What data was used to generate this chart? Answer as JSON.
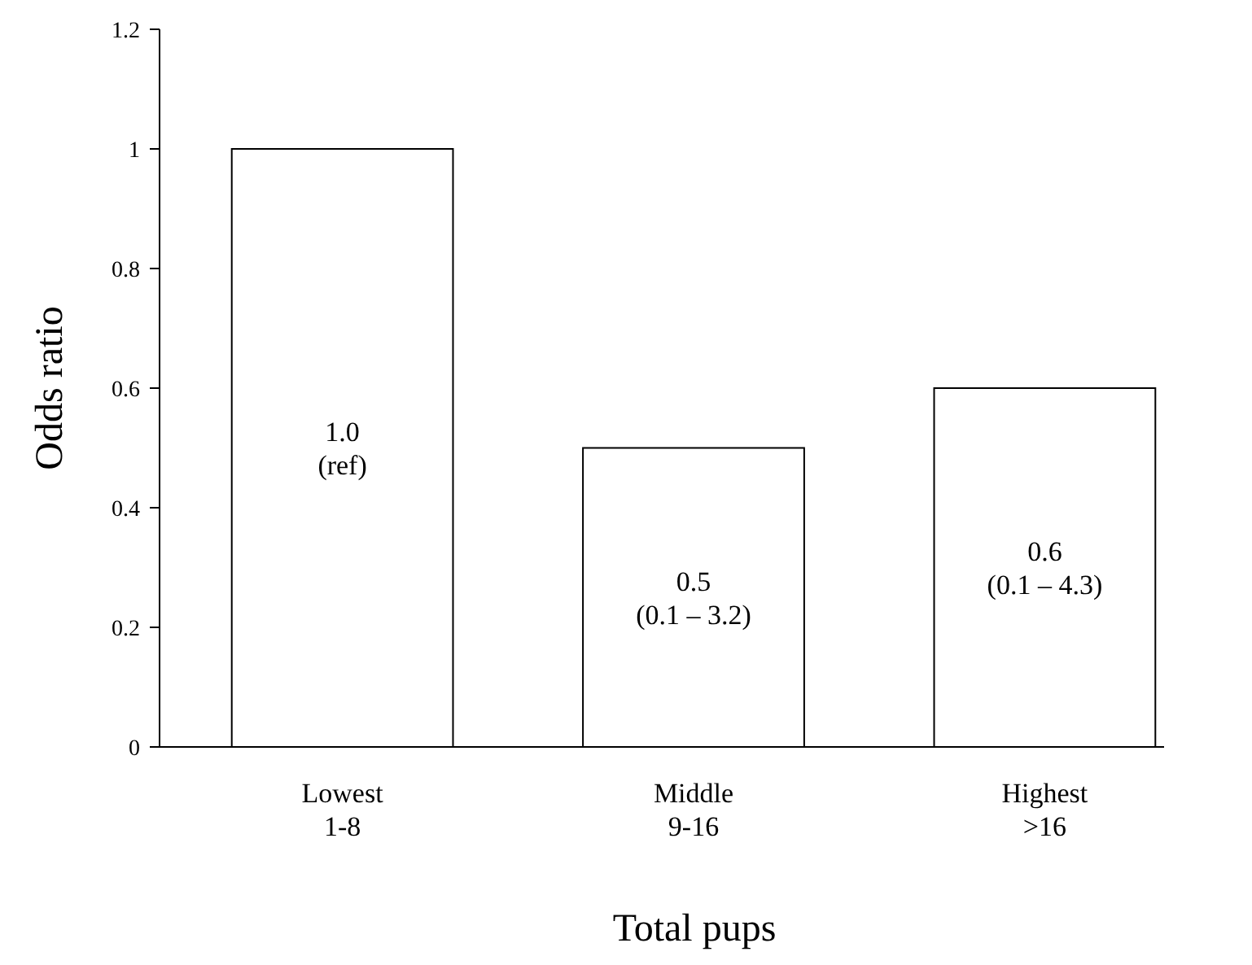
{
  "chart_data": {
    "type": "bar",
    "xlabel": "Total pups",
    "ylabel": "Odds ratio",
    "categories": [
      "Lowest\n1-8",
      "Middle\n9-16",
      "Highest\n>16"
    ],
    "values": [
      1.0,
      0.5,
      0.6
    ],
    "value_labels": [
      "1.0\n(ref)",
      "0.5\n(0.1 – 3.2)",
      "0.6\n(0.1 – 4.3)"
    ],
    "color": "#ffffff",
    "ylim": [
      0,
      1.2
    ],
    "yticks": [
      0,
      0.2,
      0.4,
      0.6,
      0.8,
      1,
      1.2
    ],
    "grid": false
  }
}
